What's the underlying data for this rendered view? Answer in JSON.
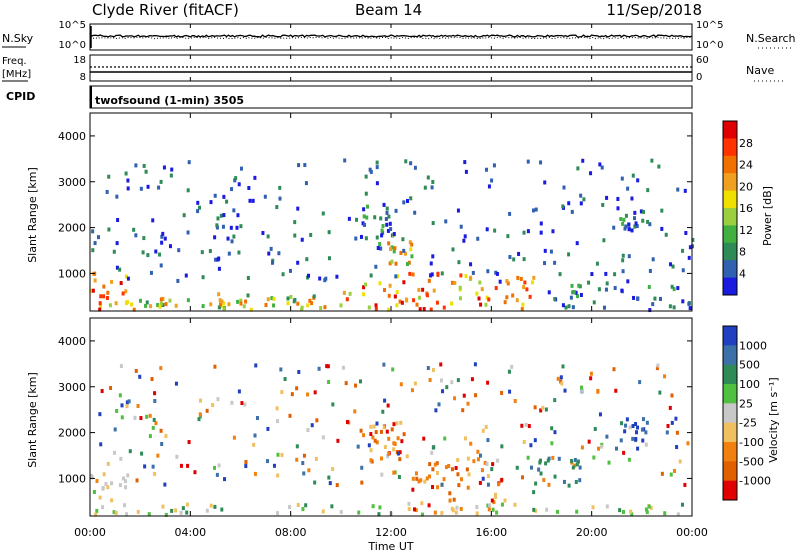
{
  "header": {
    "site": "Clyde River (fitACF)",
    "beam": "Beam 14",
    "date": "11/Sep/2018"
  },
  "top_strip": {
    "left_label": "N.Sky",
    "right_label": "N.Search",
    "left_ticks": [
      "10^5",
      "10^0"
    ],
    "right_ticks": [
      "10^5",
      "10^0"
    ]
  },
  "freq_strip": {
    "left_label_1": "Freq.",
    "left_label_2": "[MHz]",
    "right_label": "Nave",
    "left_ticks": [
      "18",
      "8"
    ],
    "right_ticks": [
      "60",
      "0"
    ]
  },
  "cpid": {
    "label": "CPID",
    "value": "twofsound (1-min) 3505"
  },
  "x_axis": {
    "label": "Time UT",
    "ticks": [
      "00:00",
      "04:00",
      "08:00",
      "12:00",
      "16:00",
      "20:00",
      "00:00"
    ]
  },
  "chart_data": [
    {
      "type": "heatmap",
      "title": "Power",
      "xlabel": "Time UT",
      "ylabel": "Slant Range [km]",
      "xlim_hours": [
        0,
        24
      ],
      "ylim": [
        180,
        4500
      ],
      "yticks": [
        1000,
        2000,
        3000,
        4000
      ],
      "colorbar_label": "Power [dB]",
      "colorbar_ticks": [
        "28",
        "24",
        "20",
        "16",
        "12",
        "8",
        "4"
      ],
      "colors": [
        "#e00000",
        "#ff3300",
        "#f07000",
        "#f0a020",
        "#f0e000",
        "#9ad040",
        "#40b040",
        "#2e8b57",
        "#3060b0",
        "#1a1ae0"
      ],
      "regions": [
        {
          "t": [
            0.0,
            1.4
          ],
          "r": [
            200,
            1000
          ],
          "level": "high"
        },
        {
          "t": [
            1.4,
            4.5
          ],
          "r": [
            200,
            450
          ],
          "level": "mid"
        },
        {
          "t": [
            4.5,
            6.5
          ],
          "r": [
            200,
            550
          ],
          "level": "mid"
        },
        {
          "t": [
            6.5,
            10.0
          ],
          "r": [
            200,
            500
          ],
          "level": "mid"
        },
        {
          "t": [
            10.0,
            13.5
          ],
          "r": [
            200,
            1000
          ],
          "level": "high"
        },
        {
          "t": [
            13.5,
            18.0
          ],
          "r": [
            200,
            1000
          ],
          "level": "high"
        },
        {
          "t": [
            18.0,
            24.0
          ],
          "r": [
            200,
            800
          ],
          "level": "low"
        },
        {
          "t": [
            10.5,
            12.0
          ],
          "r": [
            1500,
            2500
          ],
          "level": "low"
        },
        {
          "t": [
            11.8,
            12.8
          ],
          "r": [
            1200,
            1900
          ],
          "level": "mid"
        },
        {
          "t": [
            21.0,
            22.5
          ],
          "r": [
            1900,
            2300
          ],
          "level": "low"
        }
      ]
    },
    {
      "type": "heatmap",
      "title": "Velocity",
      "xlabel": "Time UT",
      "ylabel": "Slant Range [km]",
      "xlim_hours": [
        0,
        24
      ],
      "ylim": [
        180,
        4500
      ],
      "yticks": [
        1000,
        2000,
        3000,
        4000
      ],
      "colorbar_label": "Velocity [m s⁻¹]",
      "colorbar_ticks": [
        "1000",
        "500",
        "100",
        "25",
        "-25",
        "-100",
        "-500",
        "-1000"
      ],
      "colors": [
        "#2040c0",
        "#3c70a8",
        "#2e8b57",
        "#50c040",
        "#c8c8c8",
        "#f0c060",
        "#f08010",
        "#e06000",
        "#e00000"
      ],
      "regions": [
        {
          "t": [
            0.0,
            1.5
          ],
          "r": [
            200,
            1100
          ],
          "level": "grey"
        },
        {
          "t": [
            1.5,
            24.0
          ],
          "r": [
            200,
            450
          ],
          "level": "green"
        },
        {
          "t": [
            12.8,
            16.5
          ],
          "r": [
            200,
            1500
          ],
          "level": "orange"
        },
        {
          "t": [
            10.0,
            12.5
          ],
          "r": [
            1300,
            2300
          ],
          "level": "orange"
        },
        {
          "t": [
            21.0,
            22.3
          ],
          "r": [
            1800,
            2300
          ],
          "level": "blue"
        },
        {
          "t": [
            17.5,
            19.5
          ],
          "r": [
            700,
            1500
          ],
          "level": "teal"
        }
      ]
    }
  ]
}
